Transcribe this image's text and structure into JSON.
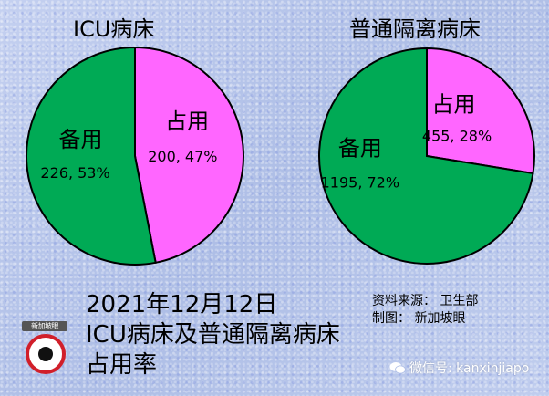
{
  "chart_data": [
    {
      "type": "pie",
      "title": "ICU病床",
      "slices": [
        {
          "label": "占用",
          "value": 200,
          "percent": "47%",
          "color": "#ff66ff"
        },
        {
          "label": "备用",
          "value": 226,
          "percent": "53%",
          "color": "#00aa55"
        }
      ]
    },
    {
      "type": "pie",
      "title": "普通隔离病床",
      "slices": [
        {
          "label": "占用",
          "value": 455,
          "percent": "28%",
          "color": "#ff66ff"
        },
        {
          "label": "备用",
          "value": 1195,
          "percent": "72%",
          "color": "#00aa55"
        }
      ]
    }
  ],
  "caption": {
    "line1": "2021年12月12日",
    "line2": "ICU病床及普通隔离病床",
    "line3": "占用率"
  },
  "source": {
    "line1": "资料来源：  卫生部",
    "line2": "制图：  新加坡眼"
  },
  "logo_text": "新加坡眼",
  "watermark": "微信号: kanxinjiapo"
}
